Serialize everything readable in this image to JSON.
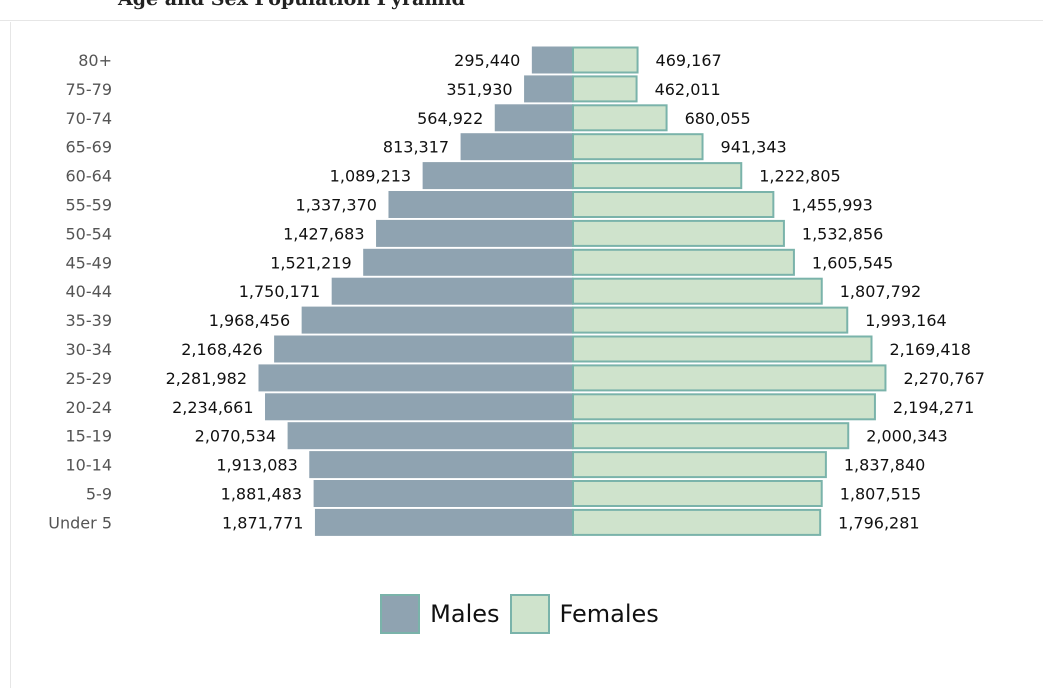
{
  "header": {
    "title": "Age and Sex Population Pyramid"
  },
  "colors": {
    "males": "#8fa3b1",
    "females": "#cfe3cc",
    "border": "#7ab3aa"
  },
  "legend": {
    "position": "bottom",
    "males_label": "Males",
    "females_label": "Females"
  },
  "chart_data": {
    "type": "bar",
    "orientation": "horizontal",
    "layout": "population-pyramid",
    "categories": [
      "Under 5",
      "5-9",
      "10-14",
      "15-19",
      "20-24",
      "25-29",
      "30-34",
      "35-39",
      "40-44",
      "45-49",
      "50-54",
      "55-59",
      "60-64",
      "65-69",
      "70-74",
      "75-79",
      "80+"
    ],
    "series": [
      {
        "name": "Males",
        "values": [
          1871771,
          1881483,
          1913083,
          2070534,
          2234661,
          2281982,
          2168426,
          1968456,
          1750171,
          1521219,
          1427683,
          1337370,
          1089213,
          813317,
          564922,
          351930,
          295440
        ]
      },
      {
        "name": "Females",
        "values": [
          1796281,
          1807515,
          1837840,
          2000343,
          2194271,
          2270767,
          2169418,
          1993164,
          1807792,
          1605545,
          1532856,
          1455993,
          1222805,
          941343,
          680055,
          462011,
          469167
        ]
      }
    ],
    "value_labels": {
      "Males": [
        "1,871,771",
        "1,881,483",
        "1,913,083",
        "2,070,534",
        "2,234,661",
        "2,281,982",
        "2,168,426",
        "1,968,456",
        "1,750,171",
        "1,521,219",
        "1,427,683",
        "1,337,370",
        "1,089,213",
        "813,317",
        "564,922",
        "351,930",
        "295,440"
      ],
      "Females": [
        "1,796,281",
        "1,807,515",
        "1,837,840",
        "2,000,343",
        "2,194,271",
        "2,270,767",
        "2,169,418",
        "1,993,164",
        "1,807,792",
        "1,605,545",
        "1,532,856",
        "1,455,993",
        "1,222,805",
        "941,343",
        "680,055",
        "462,011",
        "469,167"
      ]
    },
    "grid": false
  }
}
